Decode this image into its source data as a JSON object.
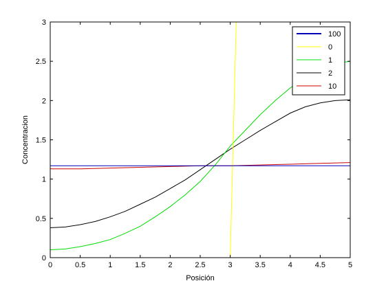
{
  "chart_data": {
    "type": "line",
    "title": "",
    "xlabel": "Posición",
    "ylabel": "Concentracion",
    "xlim": [
      0,
      5
    ],
    "ylim": [
      0,
      3
    ],
    "xticks": [
      0,
      0.5,
      1,
      1.5,
      2,
      2.5,
      3,
      3.5,
      4,
      4.5,
      5
    ],
    "xtick_labels": [
      "0",
      "0.5",
      "1",
      "1.5",
      "2",
      "2.5",
      "3",
      "3.5",
      "4",
      "4.5",
      "5"
    ],
    "yticks": [
      0,
      0.5,
      1,
      1.5,
      2,
      2.5,
      3
    ],
    "ytick_labels": [
      "0",
      "0.5",
      "1",
      "1.5",
      "2",
      "2.5",
      "3"
    ],
    "grid": false,
    "legend_position": "top-right",
    "series": [
      {
        "name": "100",
        "color": "#0000bb",
        "x": [
          0,
          1,
          2,
          3,
          4,
          5
        ],
        "y": [
          1.17,
          1.17,
          1.17,
          1.17,
          1.17,
          1.17
        ]
      },
      {
        "name": "0",
        "color": "#ffff00",
        "x": [
          0,
          1,
          2,
          2.9,
          3.0,
          3.05,
          3.1
        ],
        "y": [
          0,
          0,
          0,
          0,
          0,
          1.5,
          3
        ]
      },
      {
        "name": "1",
        "color": "#00dd00",
        "x": [
          0,
          0.25,
          0.5,
          0.75,
          1,
          1.25,
          1.5,
          1.75,
          2,
          2.25,
          2.5,
          2.75,
          3,
          3.25,
          3.5,
          3.75,
          4,
          4.25,
          4.5,
          4.75,
          5
        ],
        "y": [
          0.1,
          0.11,
          0.14,
          0.18,
          0.23,
          0.31,
          0.4,
          0.52,
          0.65,
          0.8,
          0.97,
          1.18,
          1.42,
          1.62,
          1.82,
          2.0,
          2.16,
          2.3,
          2.41,
          2.47,
          2.5
        ]
      },
      {
        "name": "2",
        "color": "#000000",
        "x": [
          0,
          0.25,
          0.5,
          0.75,
          1,
          1.25,
          1.5,
          1.75,
          2,
          2.25,
          2.5,
          2.75,
          3,
          3.25,
          3.5,
          3.75,
          4,
          4.25,
          4.5,
          4.75,
          5
        ],
        "y": [
          0.38,
          0.39,
          0.42,
          0.46,
          0.52,
          0.59,
          0.68,
          0.77,
          0.88,
          0.99,
          1.12,
          1.25,
          1.38,
          1.5,
          1.62,
          1.73,
          1.84,
          1.92,
          1.97,
          2.0,
          2.01
        ]
      },
      {
        "name": "10",
        "color": "#cc0000",
        "x": [
          0,
          0.5,
          1,
          1.5,
          2,
          2.5,
          3,
          3.5,
          4,
          4.5,
          5
        ],
        "y": [
          1.13,
          1.13,
          1.14,
          1.15,
          1.16,
          1.17,
          1.17,
          1.18,
          1.19,
          1.2,
          1.21
        ]
      }
    ]
  }
}
